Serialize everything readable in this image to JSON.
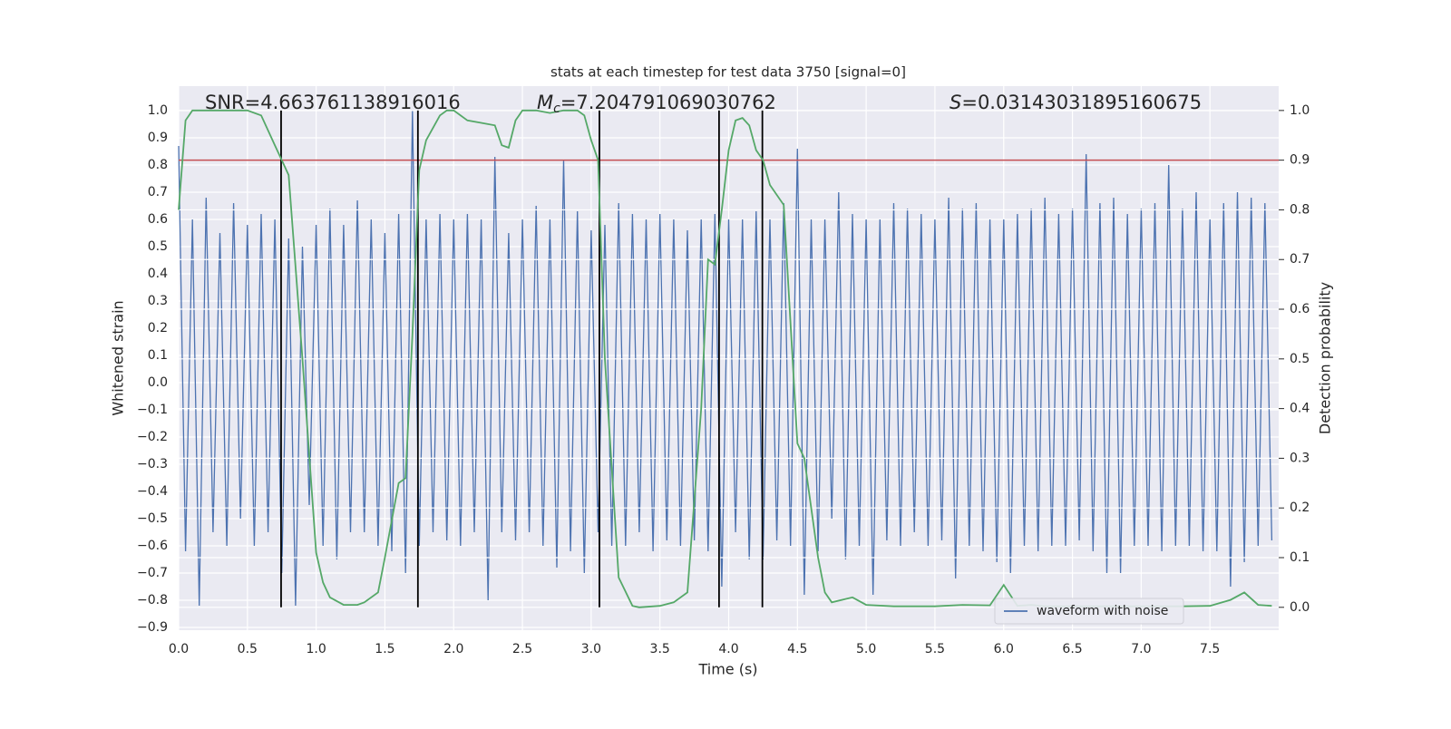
{
  "chart_data": {
    "type": "line",
    "title": "stats at each timestep for test data 3750 [signal=0]",
    "x_label": "Time (s)",
    "y_label": "Whitened strain",
    "y2_label": "Detection probability",
    "xlim": [
      0,
      8
    ],
    "ylim": [
      -0.91,
      1.09
    ],
    "y2lim": [
      -0.046,
      1.049
    ],
    "xticks": [
      {
        "value": 0,
        "label": "0.0"
      },
      0.5,
      {
        "value": 1,
        "label": "1.0"
      },
      1.5,
      {
        "value": 2,
        "label": "2.0"
      },
      2.5,
      {
        "value": 3,
        "label": "3.0"
      },
      3.5,
      {
        "value": 4,
        "label": "4.0"
      },
      4.5,
      {
        "value": 5,
        "label": "5.0"
      },
      5.5,
      {
        "value": 6,
        "label": "6.0"
      },
      6.5,
      {
        "value": 7,
        "label": "7.0"
      },
      7.5
    ],
    "yticks": [
      {
        "value": -0.9,
        "label": "−0.9"
      },
      {
        "value": -0.8,
        "label": "−0.8"
      },
      {
        "value": -0.7,
        "label": "−0.7"
      },
      {
        "value": -0.6,
        "label": "−0.6"
      },
      {
        "value": -0.5,
        "label": "−0.5"
      },
      {
        "value": -0.4,
        "label": "−0.4"
      },
      {
        "value": -0.3,
        "label": "−0.3"
      },
      {
        "value": -0.2,
        "label": "−0.2"
      },
      {
        "value": -0.1,
        "label": "−0.1"
      },
      {
        "value": 0,
        "label": "0.0"
      },
      0.1,
      0.2,
      0.3,
      0.4,
      0.5,
      0.6,
      0.7,
      0.8,
      0.9,
      {
        "value": 1,
        "label": "1.0"
      }
    ],
    "y2ticks": [
      {
        "value": 0,
        "label": "0.0"
      },
      0.1,
      0.2,
      0.3,
      0.4,
      0.5,
      0.6,
      0.7,
      0.8,
      0.9,
      {
        "value": 1,
        "label": "1.0"
      }
    ],
    "grid": true,
    "legend": "lower right",
    "annotations": [
      {
        "text": "SNR=4.663761138916016"
      },
      {
        "symbol": "M",
        "subscript": "c",
        "text": "=7.204791069030762"
      },
      {
        "symbol": "S",
        "text": "=0.03143031895160675"
      }
    ],
    "hlines": [
      {
        "value": 0.9,
        "axis": "y2",
        "color": "#c44e52"
      }
    ],
    "vlines": {
      "color": "#000000",
      "x": [
        0.745,
        1.74,
        3.06,
        3.93,
        4.245
      ]
    },
    "series": [
      {
        "name": "waveform with noise",
        "color": "#4c72b0",
        "axis": "y",
        "x": [
          0,
          0.05,
          0.1,
          0.15,
          0.2,
          0.25,
          0.3,
          0.35,
          0.4,
          0.45,
          0.5,
          0.55,
          0.6,
          0.65,
          0.7,
          0.75,
          0.8,
          0.85,
          0.9,
          0.95,
          1,
          1.05,
          1.1,
          1.15,
          1.2,
          1.25,
          1.3,
          1.35,
          1.4,
          1.45,
          1.5,
          1.55,
          1.6,
          1.65,
          1.7,
          1.75,
          1.8,
          1.85,
          1.9,
          1.95,
          2,
          2.05,
          2.1,
          2.15,
          2.2,
          2.25,
          2.3,
          2.35,
          2.4,
          2.45,
          2.5,
          2.55,
          2.6,
          2.65,
          2.7,
          2.75,
          2.8,
          2.85,
          2.9,
          2.95,
          3,
          3.05,
          3.1,
          3.15,
          3.2,
          3.25,
          3.3,
          3.35,
          3.4,
          3.45,
          3.5,
          3.55,
          3.6,
          3.65,
          3.7,
          3.75,
          3.8,
          3.85,
          3.9,
          3.95,
          4,
          4.05,
          4.1,
          4.15,
          4.2,
          4.25,
          4.3,
          4.35,
          4.4,
          4.45,
          4.5,
          4.55,
          4.6,
          4.65,
          4.7,
          4.75,
          4.8,
          4.85,
          4.9,
          4.95,
          5,
          5.05,
          5.1,
          5.15,
          5.2,
          5.25,
          5.3,
          5.35,
          5.4,
          5.45,
          5.5,
          5.55,
          5.6,
          5.65,
          5.7,
          5.75,
          5.8,
          5.85,
          5.9,
          5.95,
          6,
          6.05,
          6.1,
          6.15,
          6.2,
          6.25,
          6.3,
          6.35,
          6.4,
          6.45,
          6.5,
          6.55,
          6.6,
          6.65,
          6.7,
          6.75,
          6.8,
          6.85,
          6.9,
          6.95,
          7,
          7.05,
          7.1,
          7.15,
          7.2,
          7.25,
          7.3,
          7.35,
          7.4,
          7.45,
          7.5,
          7.55,
          7.6,
          7.65,
          7.7,
          7.75,
          7.8,
          7.85,
          7.9,
          7.95
        ],
        "values": [
          0.87,
          -0.62,
          0.6,
          -0.82,
          0.68,
          -0.55,
          0.55,
          -0.6,
          0.66,
          -0.5,
          0.58,
          -0.6,
          0.62,
          -0.55,
          0.6,
          -0.7,
          0.53,
          -0.82,
          0.5,
          -0.45,
          0.58,
          -0.6,
          0.64,
          -0.65,
          0.58,
          -0.55,
          0.67,
          -0.55,
          0.6,
          -0.6,
          0.55,
          -0.62,
          0.62,
          -0.7,
          1.0,
          -0.6,
          0.6,
          -0.55,
          0.62,
          -0.58,
          0.6,
          -0.6,
          0.62,
          -0.55,
          0.6,
          -0.8,
          0.83,
          -0.55,
          0.55,
          -0.58,
          0.6,
          -0.55,
          0.65,
          -0.6,
          0.6,
          -0.68,
          0.82,
          -0.62,
          0.63,
          -0.7,
          0.56,
          -0.55,
          0.58,
          -0.6,
          0.66,
          -0.6,
          0.62,
          -0.55,
          0.6,
          -0.62,
          0.62,
          -0.58,
          0.6,
          -0.6,
          0.56,
          -0.58,
          0.6,
          -0.62,
          0.62,
          -0.75,
          0.6,
          -0.55,
          0.6,
          -0.65,
          0.63,
          -0.65,
          0.6,
          -0.58,
          0.66,
          -0.6,
          0.86,
          -0.78,
          0.6,
          -0.62,
          0.6,
          -0.5,
          0.7,
          -0.65,
          0.62,
          -0.6,
          0.6,
          -0.78,
          0.6,
          -0.58,
          0.66,
          -0.6,
          0.64,
          -0.55,
          0.62,
          -0.6,
          0.6,
          -0.58,
          0.68,
          -0.72,
          0.64,
          -0.6,
          0.66,
          -0.62,
          0.6,
          -0.66,
          0.6,
          -0.7,
          0.62,
          -0.6,
          0.64,
          -0.62,
          0.68,
          -0.6,
          0.62,
          -0.6,
          0.64,
          -0.58,
          0.84,
          -0.62,
          0.66,
          -0.7,
          0.68,
          -0.7,
          0.62,
          -0.6,
          0.64,
          -0.6,
          0.66,
          -0.62,
          0.8,
          -0.6,
          0.64,
          -0.6,
          0.7,
          -0.62,
          0.6,
          -0.62,
          0.66,
          -0.75,
          0.7,
          -0.66,
          0.68,
          -0.6,
          0.66,
          -0.58
        ]
      },
      {
        "color": "#55a868",
        "axis": "y2",
        "x": [
          0,
          0.05,
          0.1,
          0.2,
          0.3,
          0.4,
          0.5,
          0.6,
          0.7,
          0.75,
          0.8,
          0.9,
          1,
          1.05,
          1.1,
          1.2,
          1.3,
          1.35,
          1.45,
          1.5,
          1.6,
          1.65,
          1.7,
          1.75,
          1.8,
          1.9,
          1.95,
          2,
          2.1,
          2.2,
          2.3,
          2.35,
          2.4,
          2.45,
          2.5,
          2.6,
          2.7,
          2.8,
          2.9,
          2.95,
          3,
          3.05,
          3.1,
          3.2,
          3.3,
          3.35,
          3.5,
          3.6,
          3.7,
          3.8,
          3.85,
          3.9,
          3.95,
          4,
          4.05,
          4.1,
          4.15,
          4.2,
          4.25,
          4.3,
          4.4,
          4.5,
          4.55,
          4.6,
          4.65,
          4.7,
          4.75,
          4.9,
          5,
          5.2,
          5.5,
          5.7,
          5.9,
          6,
          6.1,
          6.2,
          6.3,
          7,
          7.3,
          7.5,
          7.65,
          7.75,
          7.85,
          7.95
        ],
        "values": [
          0.8,
          0.98,
          1.0,
          1.0,
          1.0,
          1.0,
          1.0,
          0.99,
          0.93,
          0.9,
          0.87,
          0.5,
          0.11,
          0.05,
          0.02,
          0.005,
          0.005,
          0.01,
          0.03,
          0.1,
          0.25,
          0.26,
          0.55,
          0.88,
          0.94,
          0.99,
          1.0,
          1.0,
          0.98,
          0.975,
          0.97,
          0.93,
          0.925,
          0.98,
          1.0,
          1.0,
          0.995,
          1.0,
          1.0,
          0.99,
          0.94,
          0.9,
          0.5,
          0.06,
          0.003,
          0.0,
          0.003,
          0.01,
          0.03,
          0.4,
          0.7,
          0.69,
          0.8,
          0.92,
          0.98,
          0.985,
          0.97,
          0.92,
          0.9,
          0.85,
          0.81,
          0.33,
          0.3,
          0.2,
          0.1,
          0.03,
          0.01,
          0.02,
          0.005,
          0.002,
          0.002,
          0.005,
          0.004,
          0.045,
          0.003,
          0.005,
          0.002,
          0.002,
          0.002,
          0.003,
          0.015,
          0.03,
          0.005,
          0.003
        ]
      }
    ]
  }
}
